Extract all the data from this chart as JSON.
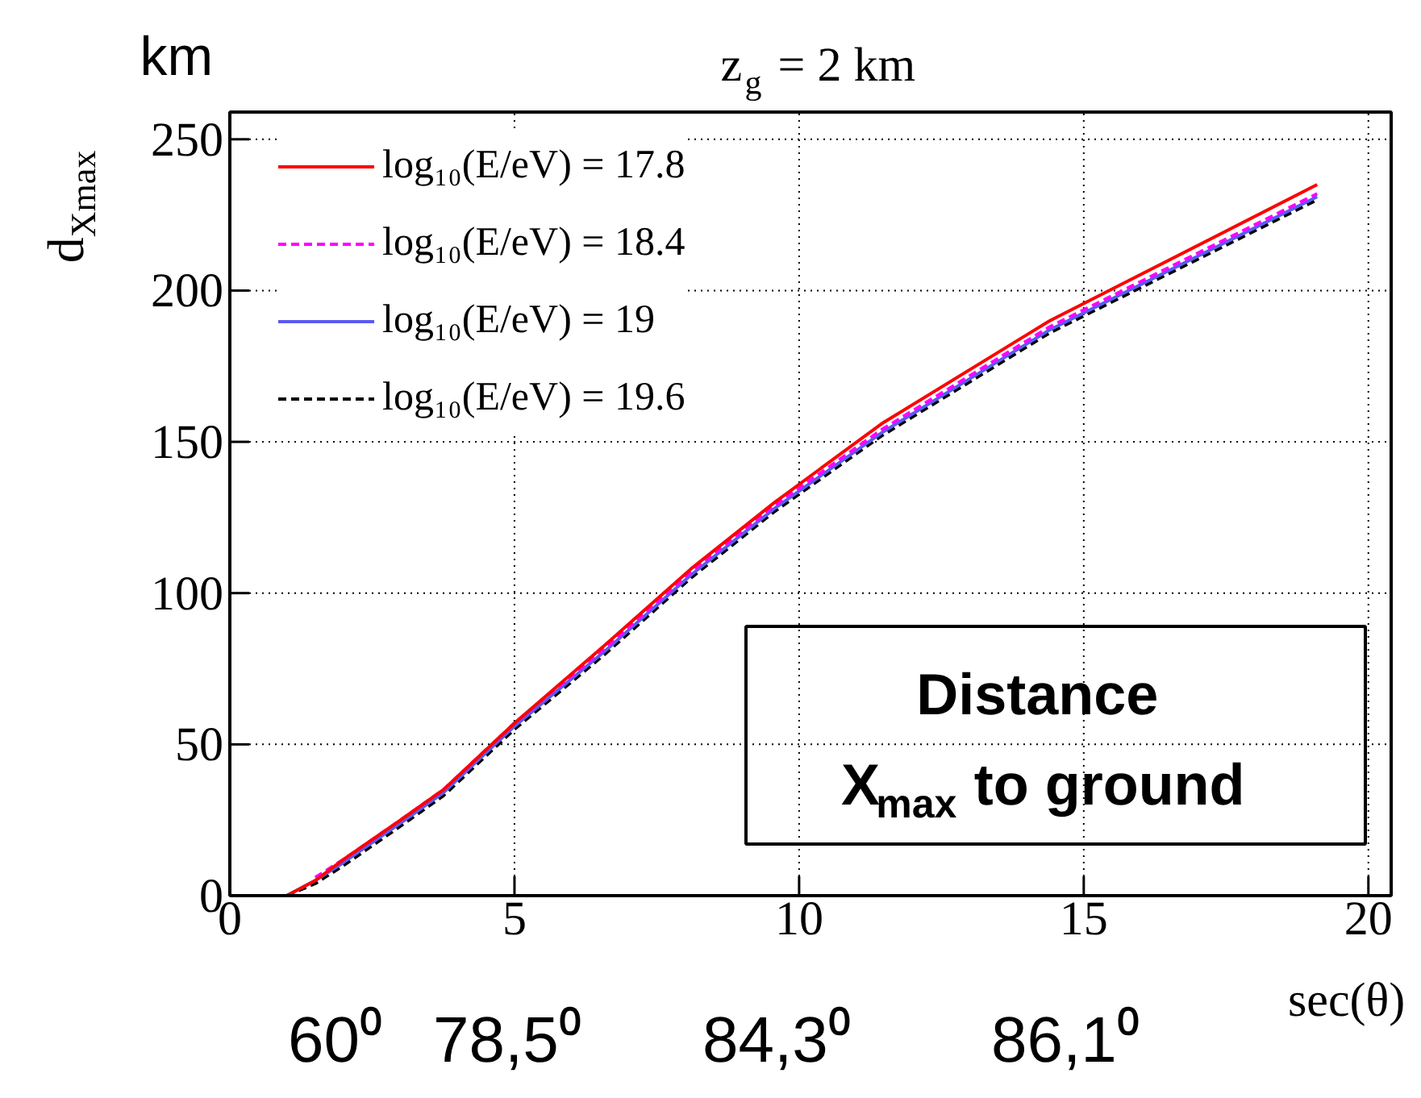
{
  "chart_data": {
    "type": "line",
    "title": "z$_{g}$ = 2 km",
    "ylabel": "d$_{Xmax}$",
    "xlabel": "sec(θ)",
    "xlim": [
      0,
      20.4
    ],
    "ylim": [
      0,
      259
    ],
    "xticks": [
      0,
      5,
      10,
      15,
      20
    ],
    "yticks": [
      0,
      50,
      100,
      150,
      200,
      250
    ],
    "grid": true,
    "legend": "top left",
    "annotations": [
      "km",
      "Distance\nX$_{max}$ to ground",
      "60⁰",
      "78,5⁰",
      "84,3⁰",
      "86,1⁰"
    ],
    "x": [
      1,
      1.5,
      2,
      3,
      3.75,
      5,
      6.6,
      8.1,
      9.57,
      11.45,
      14.4,
      19.1
    ],
    "series": [
      {
        "name": "log₁₀(E/eV) = 17.8",
        "color": "#ff0000",
        "line_style": "solid",
        "values": [
          0,
          5,
          12,
          25,
          35,
          57,
          83,
          108,
          130,
          156,
          190,
          235
        ]
      },
      {
        "name": "log₁₀(E/eV) = 18.4",
        "color": "#ff00ff",
        "line_style": "dashed",
        "values": [
          null,
          6,
          12,
          25,
          35,
          57,
          82,
          107,
          129,
          154,
          188,
          232
        ]
      },
      {
        "name": "log₁₀(E/eV) = 19",
        "color": "#5a5af0",
        "line_style": "solid",
        "values": [
          0,
          5,
          11,
          24,
          34,
          56,
          81,
          106,
          128,
          153,
          187,
          231
        ]
      },
      {
        "name": "log₁₀(E/eV) = 19.6",
        "color": "#000000",
        "line_style": "dashed",
        "values": [
          0,
          4,
          10,
          23,
          33,
          55,
          80,
          105,
          127,
          152,
          186,
          230
        ]
      }
    ]
  }
}
